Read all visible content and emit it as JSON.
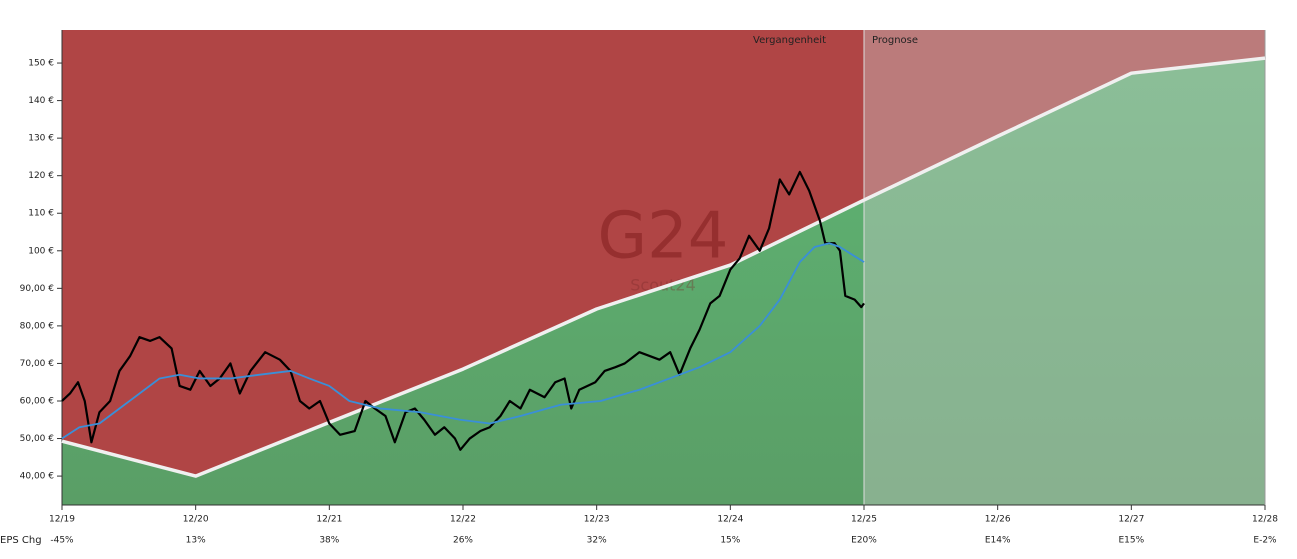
{
  "chart_data": {
    "type": "line",
    "xlim": [
      2019.92,
      2028.92
    ],
    "ylim": [
      32.3,
      158.8
    ],
    "xticks": [
      {
        "value": 2019.92,
        "label": "12/19"
      },
      {
        "value": 2020.92,
        "label": "12/20"
      },
      {
        "value": 2021.92,
        "label": "12/21"
      },
      {
        "value": 2022.92,
        "label": "12/22"
      },
      {
        "value": 2023.92,
        "label": "12/23"
      },
      {
        "value": 2024.92,
        "label": "12/24"
      },
      {
        "value": 2025.92,
        "label": "12/25"
      },
      {
        "value": 2026.92,
        "label": "12/26"
      },
      {
        "value": 2027.92,
        "label": "12/27"
      },
      {
        "value": 2028.92,
        "label": "12/28"
      }
    ],
    "yticks": [
      {
        "value": 40,
        "label": "40,00 €"
      },
      {
        "value": 50,
        "label": "50,00 €"
      },
      {
        "value": 60,
        "label": "60,00 €"
      },
      {
        "value": 70,
        "label": "70,00 €"
      },
      {
        "value": 80,
        "label": "80,00 €"
      },
      {
        "value": 90,
        "label": "90,00 €"
      },
      {
        "value": 100,
        "label": "100 €"
      },
      {
        "value": 110,
        "label": "110 €"
      },
      {
        "value": 120,
        "label": "120 €"
      },
      {
        "value": 130,
        "label": "130 €"
      },
      {
        "value": 140,
        "label": "140 €"
      },
      {
        "value": 150,
        "label": "150 €"
      }
    ],
    "series": [
      {
        "color": "#f0f0f0",
        "x": [
          2019.92,
          2020.92,
          2021.92,
          2022.92,
          2023.92,
          2024.92,
          2025.92,
          2026.92,
          2027.92,
          2028.92
        ],
        "values": [
          49.3,
          40,
          54.3,
          68.5,
          84.5,
          96.2,
          113.5,
          130.5,
          147.3,
          151.3
        ]
      },
      {
        "color": "#000000",
        "x": [
          2019.92,
          2019.98,
          2020.04,
          2020.09,
          2020.14,
          2020.2,
          2020.28,
          2020.35,
          2020.43,
          2020.5,
          2020.58,
          2020.65,
          2020.74,
          2020.8,
          2020.88,
          2020.95,
          2021.03,
          2021.1,
          2021.18,
          2021.25,
          2021.33,
          2021.44,
          2021.55,
          2021.63,
          2021.7,
          2021.77,
          2021.85,
          2021.92,
          2022.0,
          2022.11,
          2022.19,
          2022.26,
          2022.34,
          2022.41,
          2022.49,
          2022.56,
          2022.63,
          2022.71,
          2022.78,
          2022.86,
          2022.9,
          2022.97,
          2023.05,
          2023.12,
          2023.2,
          2023.27,
          2023.35,
          2023.42,
          2023.53,
          2023.61,
          2023.68,
          2023.73,
          2023.79,
          2023.91,
          2023.98,
          2024.06,
          2024.13,
          2024.24,
          2024.39,
          2024.47,
          2024.54,
          2024.62,
          2024.69,
          2024.77,
          2024.84,
          2024.92,
          2024.99,
          2025.06,
          2025.14,
          2025.21,
          2025.29,
          2025.36,
          2025.44,
          2025.51,
          2025.59,
          2025.63,
          2025.7,
          2025.74,
          2025.78,
          2025.85,
          2025.9,
          2025.92
        ],
        "values": [
          60,
          62,
          65,
          60,
          49,
          57,
          60,
          68,
          72,
          77,
          76,
          77,
          74,
          64,
          63,
          68,
          64,
          66,
          70,
          62,
          68,
          73,
          71,
          68,
          60,
          58,
          60,
          54,
          51,
          52,
          60,
          58,
          56,
          49,
          57,
          58,
          55,
          51,
          53,
          50,
          47,
          50,
          52,
          53,
          56,
          60,
          58,
          63,
          61,
          65,
          66,
          58,
          63,
          65,
          68,
          69,
          70,
          73,
          71,
          73,
          67,
          74,
          79,
          86,
          88,
          95,
          98,
          104,
          100,
          106,
          119,
          115,
          121,
          116,
          108,
          102,
          102,
          100,
          88,
          87,
          85,
          86
        ]
      },
      {
        "color": "#3a8fd8",
        "x": [
          2019.92,
          2020.05,
          2020.2,
          2020.35,
          2020.5,
          2020.65,
          2020.8,
          2020.95,
          2021.18,
          2021.4,
          2021.63,
          2021.77,
          2021.92,
          2022.07,
          2022.3,
          2022.6,
          2022.9,
          2023.12,
          2023.35,
          2023.65,
          2023.95,
          2024.24,
          2024.54,
          2024.69,
          2024.92,
          2025.14,
          2025.29,
          2025.44,
          2025.55,
          2025.66,
          2025.74,
          2025.92
        ],
        "values": [
          50,
          53,
          54,
          58,
          62,
          66,
          67,
          66,
          66,
          67,
          68,
          66,
          64,
          60,
          58,
          57,
          55,
          54,
          56,
          59,
          60,
          63,
          67,
          69,
          73,
          80,
          87,
          97,
          101,
          102,
          101,
          97
        ]
      }
    ],
    "annotations": [
      "Vergangenheit",
      "Prognose"
    ],
    "watermark": {
      "title": "G24",
      "subtitle": "Scout24"
    },
    "eps_row": {
      "label": "EPS Chg",
      "values": [
        "-45%",
        "13%",
        "38%",
        "26%",
        "32%",
        "15%",
        "E20%",
        "E14%",
        "E15%",
        "E-2%"
      ]
    }
  }
}
